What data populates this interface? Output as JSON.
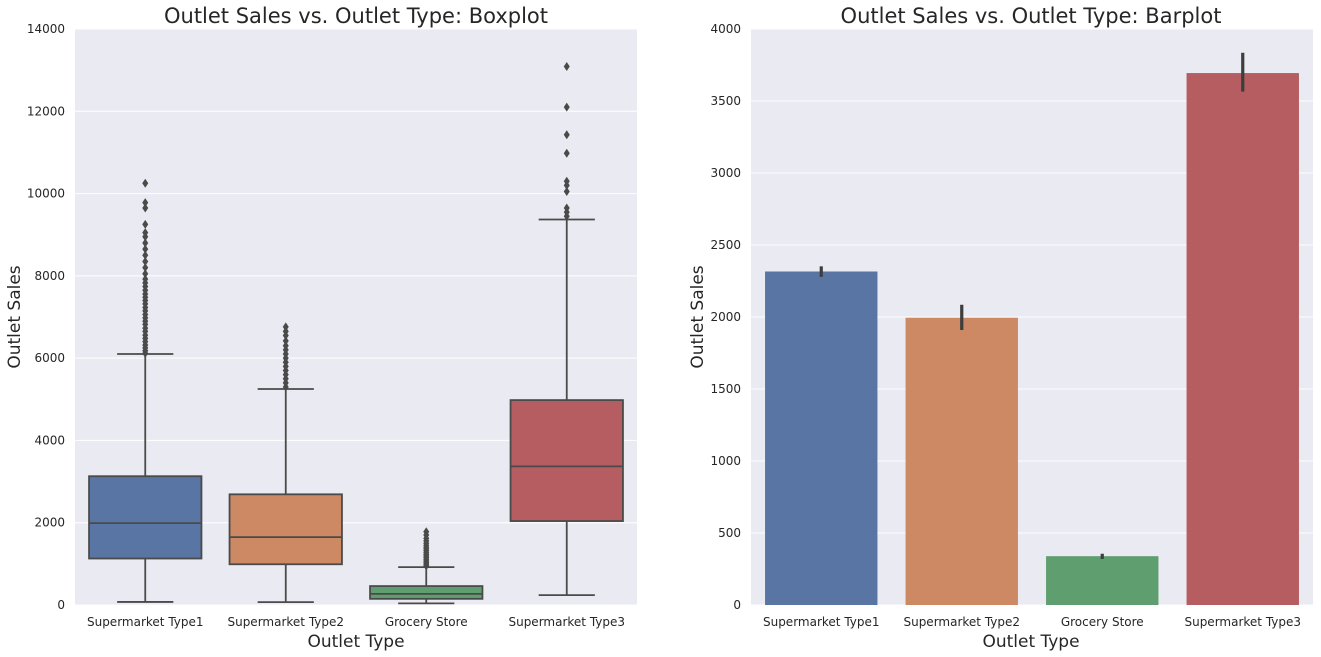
{
  "chart_data": [
    {
      "type": "box",
      "title": "Outlet Sales vs. Outlet Type: Boxplot",
      "xlabel": "Outlet Type",
      "ylabel": "Outlet Sales",
      "ylim": [
        0,
        14000
      ],
      "yticks": [
        "0",
        "2000",
        "4000",
        "6000",
        "8000",
        "10000",
        "12000",
        "14000"
      ],
      "grid": true,
      "categories": [
        "Supermarket Type1",
        "Supermarket Type2",
        "Grocery Store",
        "Supermarket Type3"
      ],
      "colors": [
        "#5875a4",
        "#cc8963",
        "#5f9e6e",
        "#b55d60"
      ],
      "boxes": [
        {
          "whislo": 75,
          "q1": 1130,
          "med": 1990,
          "q3": 3130,
          "whishi": 6100,
          "fliers": [
            6120,
            6180,
            6250,
            6320,
            6400,
            6480,
            6560,
            6650,
            6730,
            6820,
            6900,
            6980,
            7060,
            7150,
            7230,
            7320,
            7400,
            7480,
            7560,
            7650,
            7740,
            7830,
            7920,
            8050,
            8200,
            8350,
            8500,
            8650,
            8800,
            8950,
            9050,
            9250,
            9650,
            9780,
            10250
          ]
        },
        {
          "whislo": 70,
          "q1": 990,
          "med": 1650,
          "q3": 2690,
          "whishi": 5250,
          "fliers": [
            5300,
            5400,
            5500,
            5600,
            5700,
            5800,
            5900,
            6000,
            6100,
            6200,
            6300,
            6420,
            6550,
            6650,
            6760
          ]
        },
        {
          "whislo": 40,
          "q1": 150,
          "med": 270,
          "q3": 460,
          "whishi": 920,
          "fliers": [
            950,
            990,
            1030,
            1070,
            1110,
            1150,
            1190,
            1230,
            1270,
            1320,
            1360,
            1400,
            1450,
            1500,
            1560,
            1620,
            1700,
            1780
          ]
        },
        {
          "whislo": 240,
          "q1": 2040,
          "med": 3370,
          "q3": 4980,
          "whishi": 9370,
          "fliers": [
            9450,
            9550,
            9650,
            10050,
            10200,
            10300,
            10980,
            11430,
            12100,
            13090
          ]
        }
      ]
    },
    {
      "type": "bar",
      "title": "Outlet Sales vs. Outlet Type: Barplot",
      "xlabel": "Outlet Type",
      "ylabel": "Outlet Sales",
      "ylim": [
        0,
        4000
      ],
      "yticks": [
        "0",
        "500",
        "1000",
        "1500",
        "2000",
        "2500",
        "3000",
        "3500",
        "4000"
      ],
      "grid": true,
      "categories": [
        "Supermarket Type1",
        "Supermarket Type2",
        "Grocery Store",
        "Supermarket Type3"
      ],
      "colors": [
        "#5875a4",
        "#cc8963",
        "#5f9e6e",
        "#b55d60"
      ],
      "values": [
        2316,
        1995,
        339,
        3694
      ],
      "ci": [
        [
          2279,
          2352
        ],
        [
          1910,
          2085
        ],
        [
          320,
          356
        ],
        [
          3565,
          3835
        ]
      ]
    }
  ]
}
